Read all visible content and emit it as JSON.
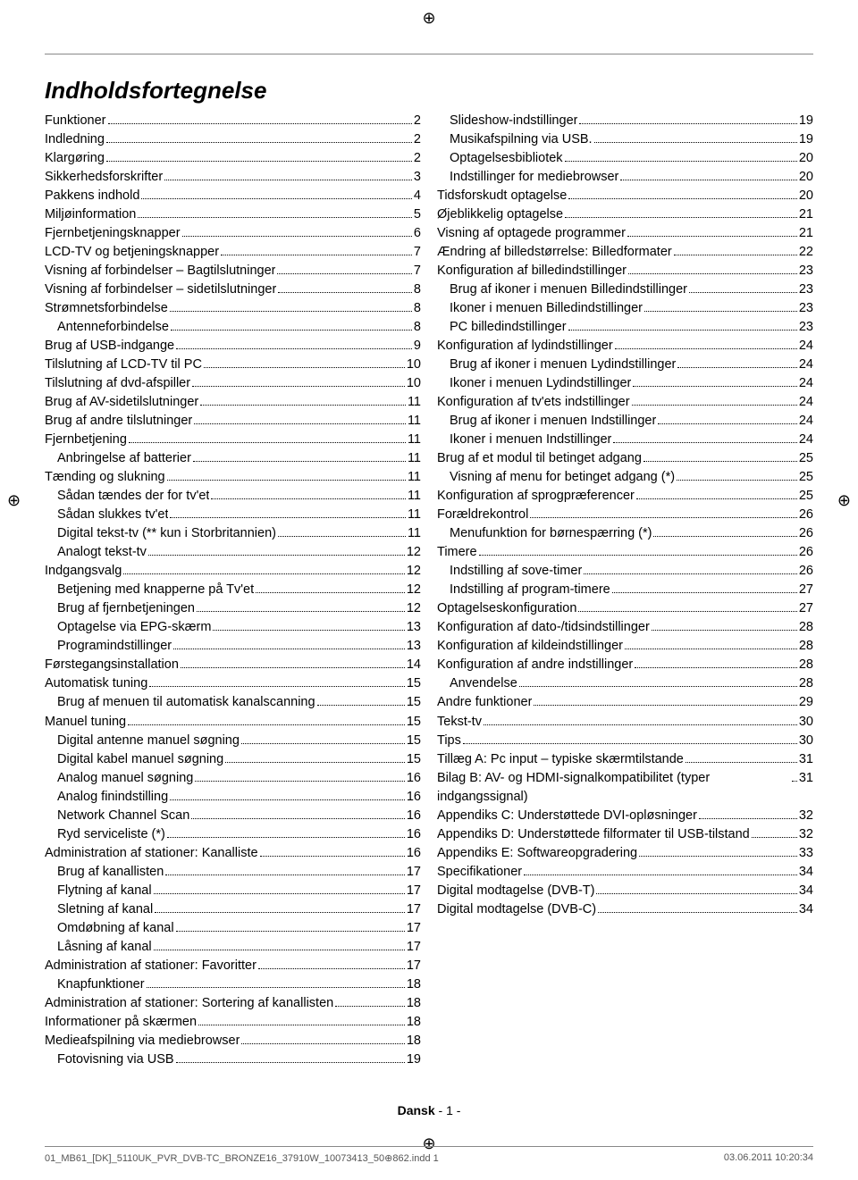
{
  "title": "Indholdsfortegnelse",
  "footer": {
    "lang": "Dansk",
    "sep": "  - ",
    "page": "1",
    "dash": " -"
  },
  "bottom": {
    "left": "01_MB61_[DK]_5110UK_PVR_DVB-TC_BRONZE16_37910W_10073413_50⊕862.indd   1",
    "right": "03.06.2011   10:20:34"
  },
  "col1": [
    {
      "t": "Funktioner",
      "p": "2",
      "i": 0
    },
    {
      "t": "Indledning",
      "p": "2",
      "i": 0
    },
    {
      "t": "Klargøring",
      "p": "2",
      "i": 0
    },
    {
      "t": "Sikkerhedsforskrifter",
      "p": "3",
      "i": 0
    },
    {
      "t": "Pakkens indhold",
      "p": "4",
      "i": 0
    },
    {
      "t": "Miljøinformation",
      "p": "5",
      "i": 0
    },
    {
      "t": "Fjernbetjeningsknapper",
      "p": "6",
      "i": 0
    },
    {
      "t": "LCD-TV og betjeningsknapper",
      "p": "7",
      "i": 0
    },
    {
      "t": "Visning af forbindelser – Bagtilslutninger",
      "p": "7",
      "i": 0
    },
    {
      "t": "Visning af forbindelser – sidetilslutninger",
      "p": "8",
      "i": 0
    },
    {
      "t": "Strømnetsforbindelse",
      "p": "8",
      "i": 0
    },
    {
      "t": "Antenneforbindelse",
      "p": "8",
      "i": 1
    },
    {
      "t": "Brug af USB-indgange",
      "p": "9",
      "i": 0
    },
    {
      "t": "Tilslutning af LCD-TV til PC",
      "p": "10",
      "i": 0
    },
    {
      "t": "Tilslutning af dvd-afspiller",
      "p": "10",
      "i": 0
    },
    {
      "t": "Brug af AV-sidetilslutninger",
      "p": "11",
      "i": 0
    },
    {
      "t": "Brug af andre tilslutninger",
      "p": "11",
      "i": 0
    },
    {
      "t": "Fjernbetjening",
      "p": "11",
      "i": 0
    },
    {
      "t": "Anbringelse af batterier",
      "p": "11",
      "i": 1
    },
    {
      "t": "Tænding og slukning",
      "p": "11",
      "i": 0
    },
    {
      "t": "Sådan tændes der for tv'et",
      "p": "11",
      "i": 1
    },
    {
      "t": "Sådan slukkes tv'et",
      "p": "11",
      "i": 1
    },
    {
      "t": "Digital tekst-tv (** kun i Storbritannien)",
      "p": "11",
      "i": 1
    },
    {
      "t": "Analogt tekst-tv",
      "p": "12",
      "i": 1
    },
    {
      "t": "Indgangsvalg",
      "p": "12",
      "i": 0
    },
    {
      "t": "Betjening med knapperne på Tv'et",
      "p": "12",
      "i": 1
    },
    {
      "t": "Brug af fjernbetjeningen",
      "p": "12",
      "i": 1
    },
    {
      "t": "Optagelse via EPG-skærm",
      "p": "13",
      "i": 1
    },
    {
      "t": "Programindstillinger",
      "p": "13",
      "i": 1
    },
    {
      "t": "Førstegangsinstallation",
      "p": "14",
      "i": 0
    },
    {
      "t": "Automatisk tuning",
      "p": "15",
      "i": 0
    },
    {
      "t": "Brug af menuen til automatisk kanalscanning",
      "p": "15",
      "i": 1
    },
    {
      "t": "Manuel tuning",
      "p": "15",
      "i": 0
    },
    {
      "t": "Digital antenne manuel søgning",
      "p": "15",
      "i": 1
    },
    {
      "t": "Digital kabel manuel søgning",
      "p": "15",
      "i": 1
    },
    {
      "t": "Analog manuel søgning",
      "p": "16",
      "i": 1
    },
    {
      "t": "Analog finindstilling",
      "p": "16",
      "i": 1
    },
    {
      "t": "Network Channel Scan",
      "p": "16",
      "i": 1
    },
    {
      "t": "Ryd serviceliste (*)",
      "p": "16",
      "i": 1
    },
    {
      "t": "Administration af stationer: Kanalliste",
      "p": "16",
      "i": 0
    },
    {
      "t": "Brug af kanallisten",
      "p": "17",
      "i": 1
    },
    {
      "t": "Flytning af kanal",
      "p": "17",
      "i": 1
    },
    {
      "t": "Sletning af kanal",
      "p": "17",
      "i": 1
    },
    {
      "t": "Omdøbning af kanal",
      "p": "17",
      "i": 1
    },
    {
      "t": "Låsning af kanal",
      "p": "17",
      "i": 1
    },
    {
      "t": "Administration af stationer: Favoritter",
      "p": "17",
      "i": 0
    },
    {
      "t": "Knapfunktioner",
      "p": "18",
      "i": 1
    },
    {
      "t": "Administration af stationer: Sortering af kanallisten",
      "p": "18",
      "i": 0
    },
    {
      "t": "Informationer på skærmen",
      "p": "18",
      "i": 0
    },
    {
      "t": "Medieafspilning via mediebrowser",
      "p": "18",
      "i": 0
    },
    {
      "t": "Fotovisning via USB",
      "p": "19",
      "i": 1
    }
  ],
  "col2": [
    {
      "t": "Slideshow-indstillinger",
      "p": "19",
      "i": 1
    },
    {
      "t": "Musikafspilning via USB.",
      "p": "19",
      "i": 1
    },
    {
      "t": "Optagelsesbibliotek",
      "p": "20",
      "i": 1
    },
    {
      "t": "Indstillinger for mediebrowser",
      "p": "20",
      "i": 1
    },
    {
      "t": "Tidsforskudt optagelse",
      "p": "20",
      "i": 0
    },
    {
      "t": "Øjeblikkelig optagelse",
      "p": "21",
      "i": 0
    },
    {
      "t": "Visning af optagede programmer",
      "p": "21",
      "i": 0
    },
    {
      "t": "Ændring af billedstørrelse: Billedformater",
      "p": "22",
      "i": 0
    },
    {
      "t": "Konfiguration af billedindstillinger",
      "p": "23",
      "i": 0
    },
    {
      "t": "Brug af ikoner i menuen Billedindstillinger",
      "p": "23",
      "i": 1
    },
    {
      "t": "Ikoner i menuen Billedindstillinger",
      "p": "23",
      "i": 1
    },
    {
      "t": "PC billedindstillinger",
      "p": "23",
      "i": 1
    },
    {
      "t": "Konfiguration af lydindstillinger",
      "p": "24",
      "i": 0
    },
    {
      "t": "Brug af ikoner i menuen Lydindstillinger",
      "p": "24",
      "i": 1
    },
    {
      "t": "Ikoner i menuen Lydindstillinger",
      "p": "24",
      "i": 1
    },
    {
      "t": "Konfiguration af tv'ets indstillinger",
      "p": "24",
      "i": 0
    },
    {
      "t": "Brug af ikoner i menuen Indstillinger",
      "p": "24",
      "i": 1
    },
    {
      "t": "Ikoner i menuen Indstillinger",
      "p": "24",
      "i": 1
    },
    {
      "t": "Brug af et modul til betinget adgang",
      "p": "25",
      "i": 0
    },
    {
      "t": "Visning af menu for betinget adgang (*)",
      "p": "25",
      "i": 1
    },
    {
      "t": "Konfiguration af sprogpræferencer",
      "p": "25",
      "i": 0
    },
    {
      "t": "Forældrekontrol",
      "p": "26",
      "i": 0
    },
    {
      "t": "Menufunktion for børnespærring (*)",
      "p": "26",
      "i": 1
    },
    {
      "t": "Timere",
      "p": "26",
      "i": 0
    },
    {
      "t": "Indstilling af sove-timer",
      "p": "26",
      "i": 1
    },
    {
      "t": "Indstilling af program-timere",
      "p": "27",
      "i": 1
    },
    {
      "t": "Optagelseskonfiguration",
      "p": "27",
      "i": 0
    },
    {
      "t": "Konfiguration af dato-/tidsindstillinger",
      "p": "28",
      "i": 0
    },
    {
      "t": "Konfiguration af kildeindstillinger",
      "p": "28",
      "i": 0
    },
    {
      "t": "Konfiguration af andre indstillinger",
      "p": "28",
      "i": 0
    },
    {
      "t": "Anvendelse",
      "p": "28",
      "i": 1
    },
    {
      "t": "Andre funktioner",
      "p": "29",
      "i": 0
    },
    {
      "t": "Tekst-tv",
      "p": "30",
      "i": 0
    },
    {
      "t": "Tips",
      "p": "30",
      "i": 0
    },
    {
      "t": "Tillæg A: Pc input – typiske skærmtilstande",
      "p": "31",
      "i": 0
    },
    {
      "t": "Bilag B: AV- og HDMI-signalkompatibilitet (typer indgangssignal)",
      "p": "31",
      "i": 0
    },
    {
      "t": "Appendiks C: Understøttede DVI-opløsninger",
      "p": "32",
      "i": 0
    },
    {
      "t": "Appendiks D: Understøttede filformater til USB-tilstand",
      "p": "32",
      "i": 0
    },
    {
      "t": "Appendiks E: Softwareopgradering",
      "p": "33",
      "i": 0
    },
    {
      "t": "Specifikationer",
      "p": "34",
      "i": 0
    },
    {
      "t": "Digital modtagelse (DVB-T)",
      "p": "34",
      "i": 0
    },
    {
      "t": "Digital modtagelse (DVB-C)",
      "p": "34",
      "i": 0
    }
  ]
}
